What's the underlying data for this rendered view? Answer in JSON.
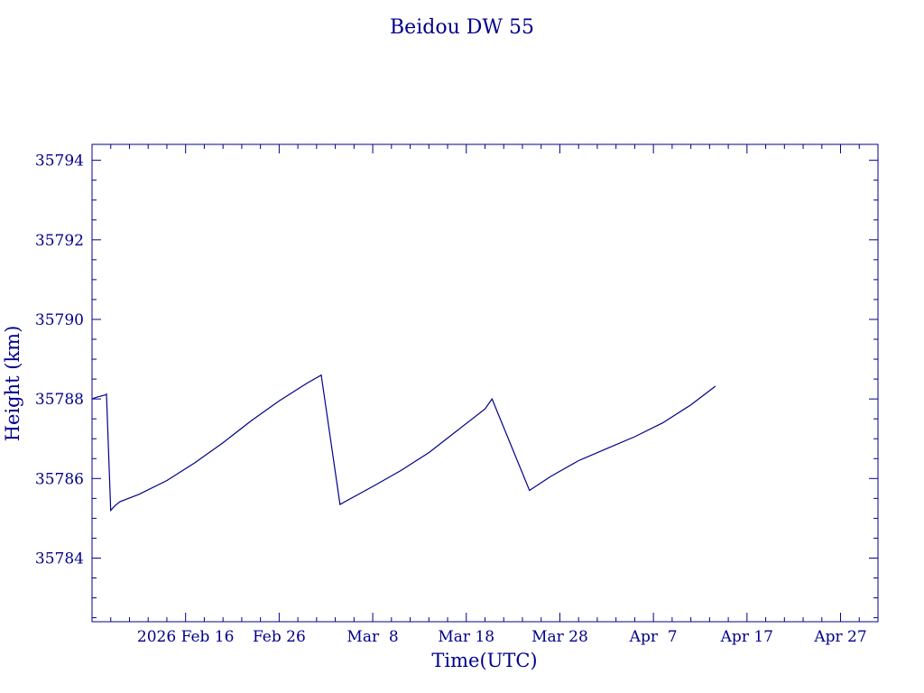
{
  "chart_data": {
    "type": "line",
    "title": "Beidou DW 55",
    "xlabel": "Time(UTC)",
    "ylabel": "Height (km)",
    "color": "#00008b",
    "xlim": [
      "2026-02-06",
      "2026-05-01"
    ],
    "ylim": [
      35782.4,
      35794.4
    ],
    "x_ticks": [
      {
        "date": "2026-02-16",
        "label": "2026 Feb 16"
      },
      {
        "date": "2026-02-26",
        "label": "Feb 26"
      },
      {
        "date": "2026-03-08",
        "label": "Mar  8"
      },
      {
        "date": "2026-03-18",
        "label": "Mar 18"
      },
      {
        "date": "2026-03-28",
        "label": "Mar 28"
      },
      {
        "date": "2026-04-07",
        "label": "Apr  7"
      },
      {
        "date": "2026-04-17",
        "label": "Apr 17"
      },
      {
        "date": "2026-04-27",
        "label": "Apr 27"
      }
    ],
    "y_ticks": [
      35784,
      35786,
      35788,
      35790,
      35792,
      35794
    ],
    "series": [
      {
        "values": [
          {
            "x": "2026-02-06T00:00",
            "y": 35788.0
          },
          {
            "x": "2026-02-06T14:00",
            "y": 35788.05
          },
          {
            "x": "2026-02-07T10:00",
            "y": 35788.1
          },
          {
            "x": "2026-02-07T13:00",
            "y": 35788.12
          },
          {
            "x": "2026-02-08T00:00",
            "y": 35785.2
          },
          {
            "x": "2026-02-08T11:00",
            "y": 35785.32
          },
          {
            "x": "2026-02-09T00:00",
            "y": 35785.42
          },
          {
            "x": "2026-02-11T00:00",
            "y": 35785.6
          },
          {
            "x": "2026-02-14T00:00",
            "y": 35785.95
          },
          {
            "x": "2026-02-17T00:00",
            "y": 35786.4
          },
          {
            "x": "2026-02-20T00:00",
            "y": 35786.9
          },
          {
            "x": "2026-02-23T00:00",
            "y": 35787.45
          },
          {
            "x": "2026-02-26T00:00",
            "y": 35787.95
          },
          {
            "x": "2026-03-01T00:00",
            "y": 35788.4
          },
          {
            "x": "2026-03-02T12:00",
            "y": 35788.6
          },
          {
            "x": "2026-03-04T12:00",
            "y": 35785.35
          },
          {
            "x": "2026-03-08T00:00",
            "y": 35785.8
          },
          {
            "x": "2026-03-11T00:00",
            "y": 35786.2
          },
          {
            "x": "2026-03-14T00:00",
            "y": 35786.65
          },
          {
            "x": "2026-03-17T00:00",
            "y": 35787.2
          },
          {
            "x": "2026-03-20T00:00",
            "y": 35787.75
          },
          {
            "x": "2026-03-20T18:00",
            "y": 35788.0
          },
          {
            "x": "2026-03-24T18:00",
            "y": 35785.7
          },
          {
            "x": "2026-03-27T00:00",
            "y": 35786.05
          },
          {
            "x": "2026-03-30T00:00",
            "y": 35786.45
          },
          {
            "x": "2026-04-02T00:00",
            "y": 35786.75
          },
          {
            "x": "2026-04-05T00:00",
            "y": 35787.05
          },
          {
            "x": "2026-04-08T00:00",
            "y": 35787.4
          },
          {
            "x": "2026-04-11T00:00",
            "y": 35787.85
          },
          {
            "x": "2026-04-13T15:00",
            "y": 35788.32
          }
        ]
      }
    ]
  }
}
